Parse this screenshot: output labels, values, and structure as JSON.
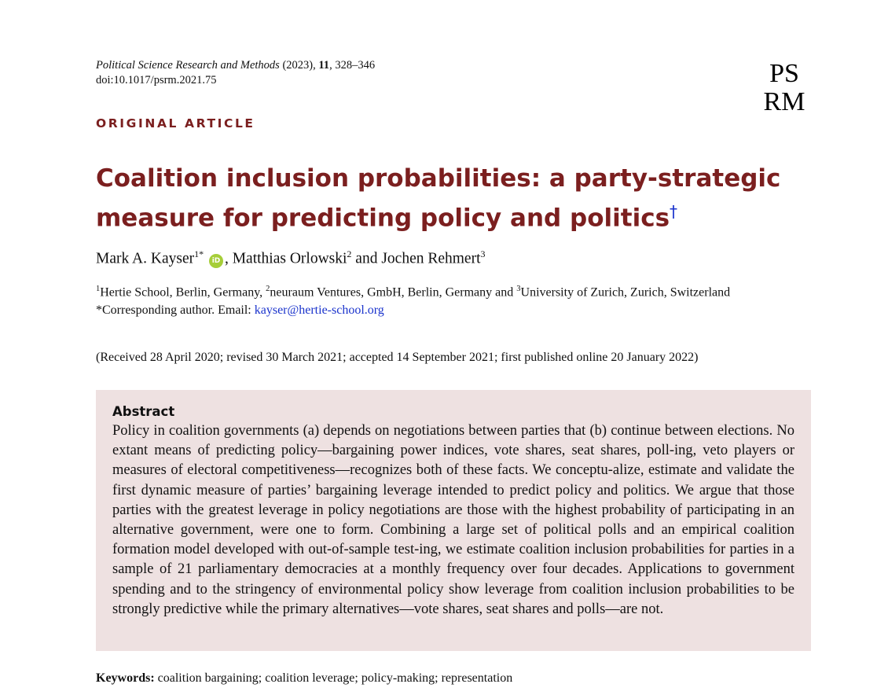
{
  "journal": {
    "name": "Political Science Research and Methods",
    "year": "(2023),",
    "volume": "11",
    "pages": ", 328–346",
    "doi": "doi:10.1017/psrm.2021.75"
  },
  "logo": {
    "line1": "PS",
    "line2": "RM"
  },
  "section_label": "ORIGINAL ARTICLE",
  "title": {
    "text": "Coalition inclusion probabilities: a party-strategic measure for predicting policy and politics",
    "dagger": "†"
  },
  "authors": {
    "a1": "Mark A. Kayser",
    "a1_sup": "1*",
    "orcid": "iD",
    "a2": ", Matthias Orlowski",
    "a2_sup": "2",
    "a3": " and Jochen Rehmert",
    "a3_sup": "3"
  },
  "affiliations": {
    "s1": "1",
    "t1": "Hertie School, Berlin, Germany, ",
    "s2": "2",
    "t2": "neuraum Ventures, GmbH, Berlin, Germany and ",
    "s3": "3",
    "t3": "University of Zurich, Zurich, Switzerland",
    "corresponding": "*Corresponding author. Email: ",
    "email": "kayser@hertie-school.org"
  },
  "received": "(Received 28 April 2020; revised 30 March 2021; accepted 14 September 2021; first published online 20 January 2022)",
  "abstract": {
    "heading": "Abstract",
    "body": "Policy in coalition governments (a) depends on negotiations between parties that (b) continue between elections. No extant means of predicting policy—bargaining power indices, vote shares, seat shares, poll-ing, veto players or measures of electoral competitiveness—recognizes both of these facts. We conceptu-alize, estimate and validate the first dynamic measure of parties’ bargaining leverage intended to predict policy and politics. We argue that those parties with the greatest leverage in policy negotiations are those with the highest probability of participating in an alternative government, were one to form. Combining a large set of political polls and an empirical coalition formation model developed with out-of-sample test-ing, we estimate coalition inclusion probabilities for parties in a sample of 21 parliamentary democracies at a monthly frequency over four decades. Applications to government spending and to the stringency of environmental policy show leverage from coalition inclusion probabilities to be strongly predictive while the primary alternatives—vote shares, seat shares and polls—are not."
  },
  "keywords": {
    "label": "Keywords:",
    "text": " coalition bargaining; coalition leverage; policy-making; representation"
  },
  "colors": {
    "accent": "#7b1f1f",
    "link": "#1a33cc",
    "abstract_bg": "#eee1e1",
    "orcid": "#a6ce39"
  }
}
